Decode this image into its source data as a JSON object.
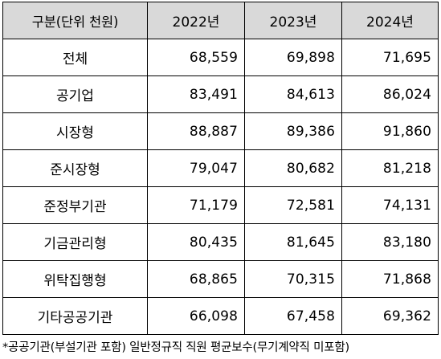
{
  "table": {
    "headers": [
      "구분(단위 천원)",
      "2022년",
      "2023년",
      "2024년"
    ],
    "rows": [
      {
        "category": "전체",
        "values": [
          "68,559",
          "69,898",
          "71,695"
        ]
      },
      {
        "category": "공기업",
        "values": [
          "83,491",
          "84,613",
          "86,024"
        ]
      },
      {
        "category": "시장형",
        "values": [
          "88,887",
          "89,386",
          "91,860"
        ]
      },
      {
        "category": "준시장형",
        "values": [
          "79,047",
          "80,682",
          "81,218"
        ]
      },
      {
        "category": "준정부기관",
        "values": [
          "71,179",
          "72,581",
          "74,131"
        ]
      },
      {
        "category": "기금관리형",
        "values": [
          "80,435",
          "81,645",
          "83,180"
        ]
      },
      {
        "category": "위탁집행형",
        "values": [
          "68,865",
          "70,315",
          "71,868"
        ]
      },
      {
        "category": "기타공공기관",
        "values": [
          "66,098",
          "67,458",
          "69,362"
        ]
      }
    ]
  },
  "footnote": "*공공기관(부설기관 포함) 일반정규직 직원 평균보수(무기계약직 미포함)",
  "colors": {
    "header_bg": "#d9d9d9",
    "border": "#000000",
    "text": "#000000"
  }
}
